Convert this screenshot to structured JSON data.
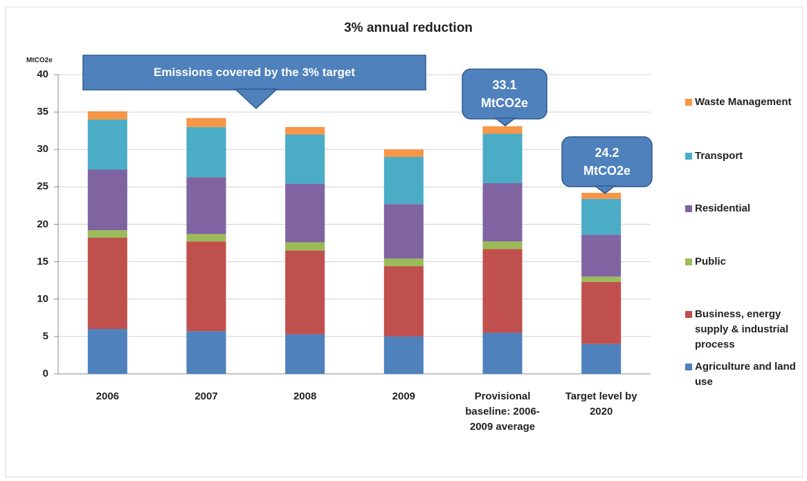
{
  "chart_data": {
    "type": "stacked_bar",
    "title": "3% annual reduction",
    "y_axis_label": "MtCO2e",
    "categories": [
      "2006",
      "2007",
      "2008",
      "2009",
      "Provisional baseline: 2006-2009 average",
      "Target level by 2020"
    ],
    "series": [
      {
        "name": "Agriculture and land use",
        "color": "#4f81bd",
        "values": [
          6,
          5.7,
          5.3,
          5,
          5.5,
          4
        ]
      },
      {
        "name": "Business, energy supply & industrial process",
        "color": "#c0504d",
        "values": [
          12.2,
          12,
          11.2,
          9.4,
          11.2,
          8.3
        ]
      },
      {
        "name": "Public",
        "color": "#9bbb59",
        "values": [
          1,
          1,
          1.1,
          1,
          1,
          0.7
        ]
      },
      {
        "name": "Residential",
        "color": "#8064a2",
        "values": [
          8.1,
          7.6,
          7.8,
          7.3,
          7.8,
          5.6
        ]
      },
      {
        "name": "Transport",
        "color": "#4bacc6",
        "values": [
          6.7,
          6.7,
          6.6,
          6.3,
          6.6,
          4.8
        ]
      },
      {
        "name": "Waste Management",
        "color": "#f79646",
        "values": [
          1.1,
          1.2,
          1,
          1,
          1,
          0.8
        ]
      }
    ],
    "ylim": [
      0,
      40
    ],
    "yticks": [
      0,
      5,
      10,
      15,
      20,
      25,
      30,
      35,
      40
    ],
    "grid": true,
    "annotations": [
      {
        "lines": [
          "Emissions covered by the 3% target"
        ]
      },
      {
        "lines": [
          "33.1",
          "MtCO2e"
        ]
      },
      {
        "lines": [
          "24.2",
          "MtCO2e"
        ]
      }
    ]
  }
}
